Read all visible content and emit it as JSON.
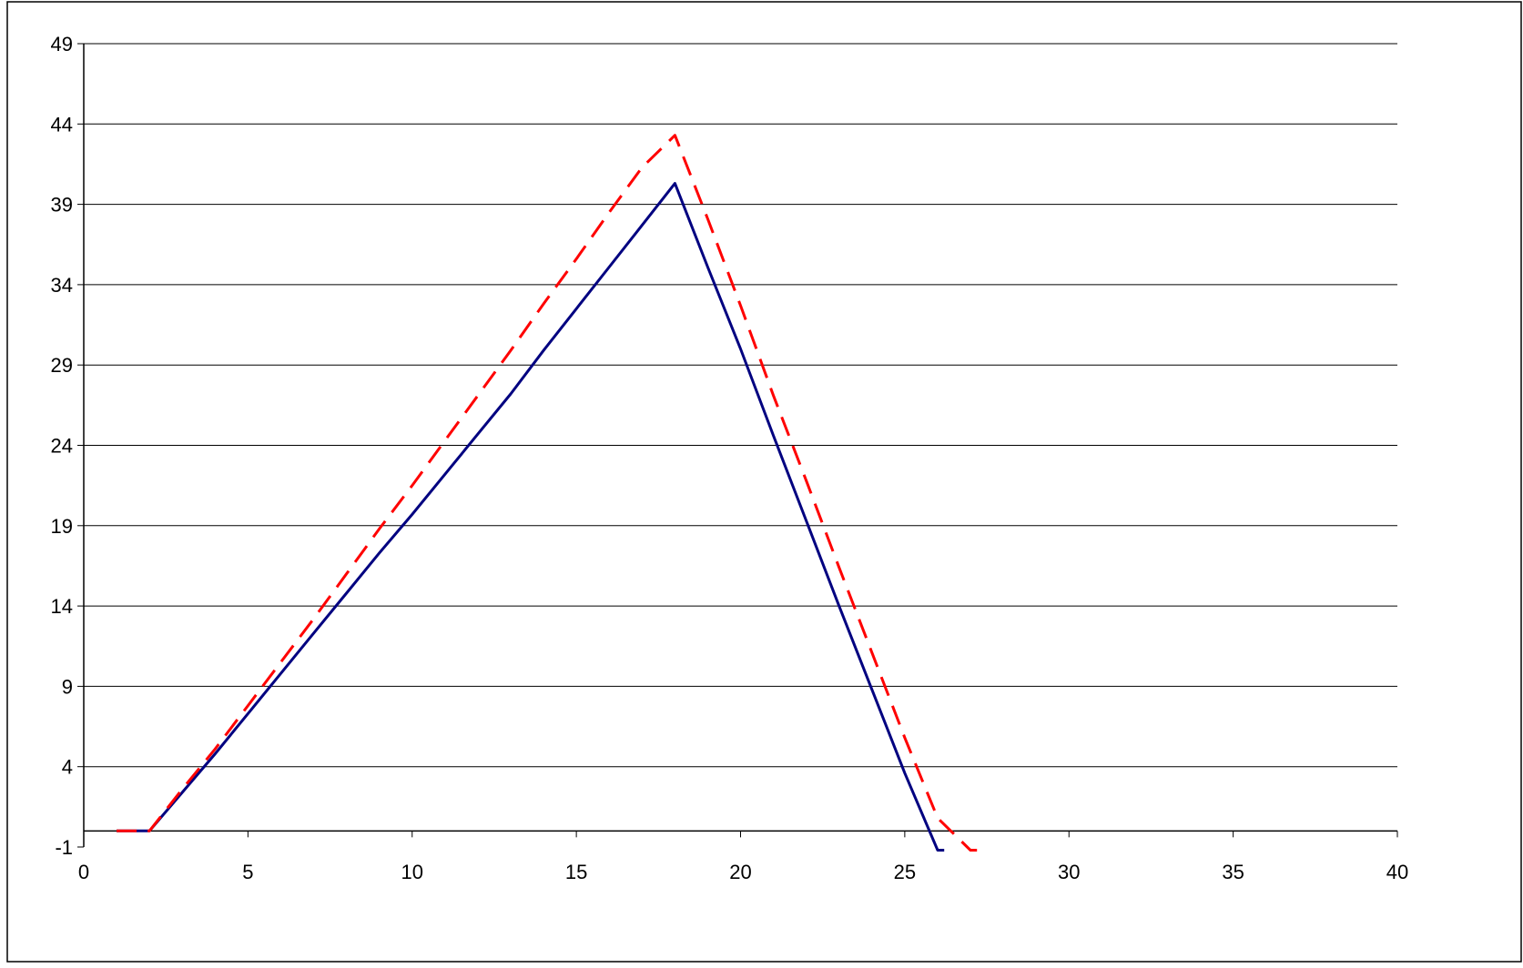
{
  "chart_data": {
    "type": "line",
    "title": "",
    "xlabel": "",
    "ylabel": "",
    "xlim": [
      0,
      40
    ],
    "ylim": [
      -1,
      49
    ],
    "x_ticks": [
      "0",
      "5",
      "10",
      "15",
      "20",
      "25",
      "30",
      "35",
      "40"
    ],
    "y_ticks": [
      "-1",
      "4",
      "9",
      "14",
      "19",
      "24",
      "29",
      "34",
      "39",
      "44",
      "49"
    ],
    "grid": "horizontal",
    "legend": "none",
    "series": [
      {
        "color": "#000080",
        "style": "solid",
        "x": [
          1,
          2,
          3,
          4,
          5,
          6,
          7,
          8,
          9,
          10,
          11,
          12,
          13,
          14,
          15,
          16,
          17,
          18,
          19,
          20,
          21,
          22,
          23,
          24,
          25,
          26,
          26.2
        ],
        "y": [
          0,
          0,
          2.4,
          4.8,
          7.3,
          9.8,
          12.3,
          14.8,
          17.3,
          19.7,
          22.2,
          24.7,
          27.2,
          29.9,
          32.5,
          35.1,
          37.7,
          40.3,
          35.1,
          30,
          24.6,
          19.3,
          14,
          8.8,
          3.6,
          -1.2,
          -1.2
        ]
      },
      {
        "color": "#ff0000",
        "style": "dashed",
        "x": [
          1,
          2,
          3,
          4,
          5,
          6,
          7,
          8,
          9,
          10,
          11,
          12,
          13,
          14,
          15,
          16,
          17,
          18,
          19,
          20,
          21,
          22,
          23,
          24,
          25,
          26,
          27,
          27.2
        ],
        "y": [
          0,
          0,
          2.6,
          5.1,
          7.8,
          10.5,
          13.2,
          16,
          18.8,
          21.5,
          24.3,
          27.1,
          29.9,
          32.8,
          35.6,
          38.5,
          41.3,
          43.3,
          38.1,
          32.7,
          27.1,
          21.8,
          16.4,
          11.1,
          5.8,
          0.8,
          -1.2,
          -1.2
        ]
      }
    ]
  }
}
